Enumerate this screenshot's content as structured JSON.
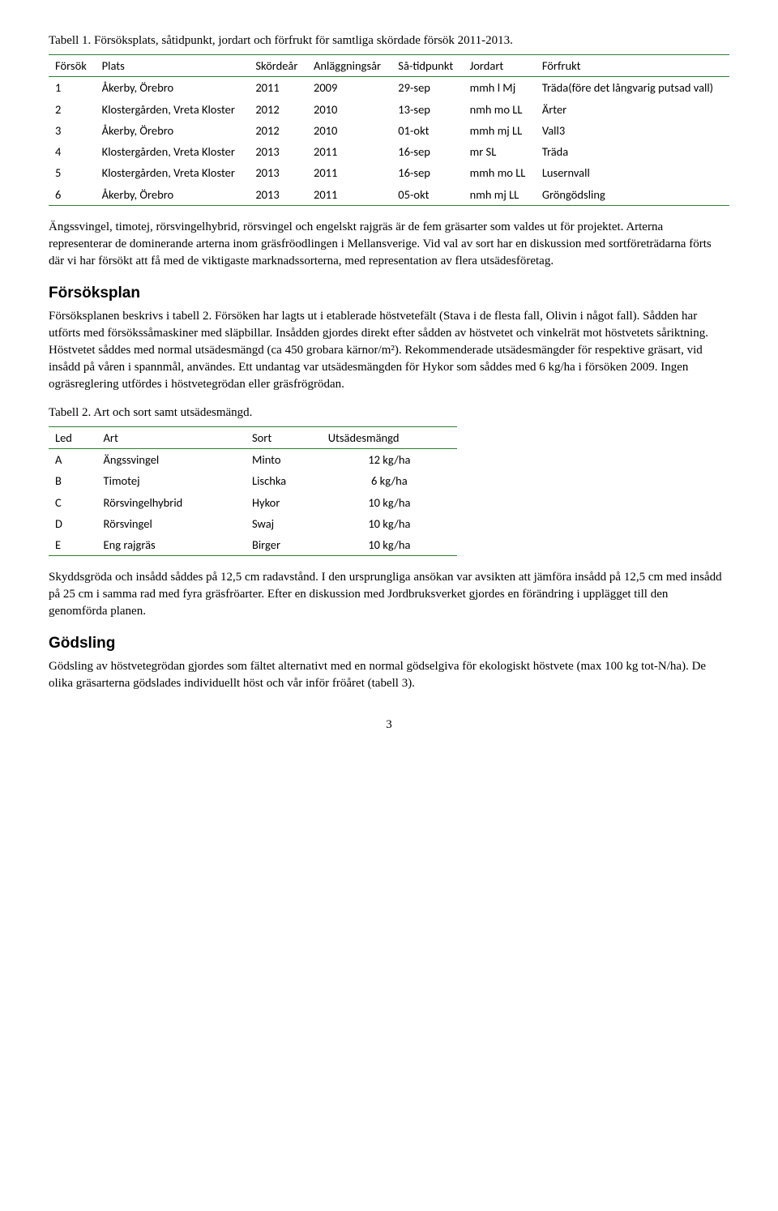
{
  "table1": {
    "caption": "Tabell 1. Försöksplats, såtidpunkt, jordart och förfrukt för samtliga skördade försök 2011-2013.",
    "headers": [
      "Försök",
      "Plats",
      "Skördeår",
      "Anläggningsår",
      "Så-tidpunkt",
      "Jordart",
      "Förfrukt"
    ],
    "rows": [
      [
        "1",
        "Åkerby, Örebro",
        "2011",
        "2009",
        "29-sep",
        "mmh l Mj",
        "Träda(före det långvarig putsad vall)"
      ],
      [
        "2",
        "Klostergården, Vreta Kloster",
        "2012",
        "2010",
        "13-sep",
        "nmh mo LL",
        "Ärter"
      ],
      [
        "3",
        "Åkerby, Örebro",
        "2012",
        "2010",
        "01-okt",
        "mmh mj LL",
        "Vall3"
      ],
      [
        "4",
        "Klostergården, Vreta Kloster",
        "2013",
        "2011",
        "16-sep",
        "mr SL",
        "Träda"
      ],
      [
        "5",
        "Klostergården, Vreta Kloster",
        "2013",
        "2011",
        "16-sep",
        "mmh mo LL",
        "Lusernvall"
      ],
      [
        "6",
        "Åkerby, Örebro",
        "2013",
        "2011",
        "05-okt",
        "nmh mj LL",
        "Gröngödsling"
      ]
    ]
  },
  "para1": "Ängssvingel, timotej, rörsvingelhybrid, rörsvingel och engelskt rajgräs är de fem gräsarter som valdes ut för projektet. Arterna representerar de dominerande arterna inom gräsfröodlingen i Mellansverige. Vid val av sort har en diskussion med sortföreträdarna förts där vi har försökt att få med de viktigaste marknadssorterna, med representation av flera utsädesföretag.",
  "h2_1": "Försöksplan",
  "para2": "Försöksplanen beskrivs i tabell 2. Försöken har lagts ut i etablerade höstvetefält (Stava i de flesta fall, Olivin i något fall). Sådden har utförts med försökssåmaskiner med släpbillar. Insådden gjordes direkt efter sådden av höstvetet och vinkelrät mot höstvetets såriktning. Höstvetet såddes med normal utsädesmängd (ca 450 grobara kärnor/m²). Rekommenderade utsädesmängder för respektive gräsart, vid insådd på våren i spannmål, användes. Ett undantag var utsädesmängden för Hykor som såddes med 6 kg/ha i försöken 2009. Ingen ogräsreglering utfördes i höstvetegrödan eller gräsfrögrödan.",
  "table2": {
    "caption": "Tabell 2. Art och sort samt utsädesmängd.",
    "headers": [
      "Led",
      "Art",
      "Sort",
      "Utsädesmängd"
    ],
    "rows": [
      [
        "A",
        "Ängssvingel",
        "Minto",
        "12 kg/ha"
      ],
      [
        "B",
        "Timotej",
        "Lischka",
        "6 kg/ha"
      ],
      [
        "C",
        "Rörsvingelhybrid",
        "Hykor",
        "10 kg/ha"
      ],
      [
        "D",
        "Rörsvingel",
        "Swaj",
        "10 kg/ha"
      ],
      [
        "E",
        "Eng rajgräs",
        "Birger",
        "10 kg/ha"
      ]
    ]
  },
  "para3": "Skyddsgröda och insådd såddes på 12,5 cm radavstånd. I den ursprungliga ansökan var avsikten att jämföra insådd på 12,5 cm med insådd på 25 cm i samma rad med fyra gräsfröarter. Efter en diskussion med Jordbruksverket gjordes en förändring i upplägget till den genomförda planen.",
  "h2_2": "Gödsling",
  "para4": "Gödsling av höstvetegrödan gjordes som fältet alternativt med en normal gödselgiva för ekologiskt höstvete (max 100 kg tot-N/ha). De olika gräsarterna gödslades individuellt höst och vår inför fröåret (tabell 3).",
  "pagenum": "3"
}
